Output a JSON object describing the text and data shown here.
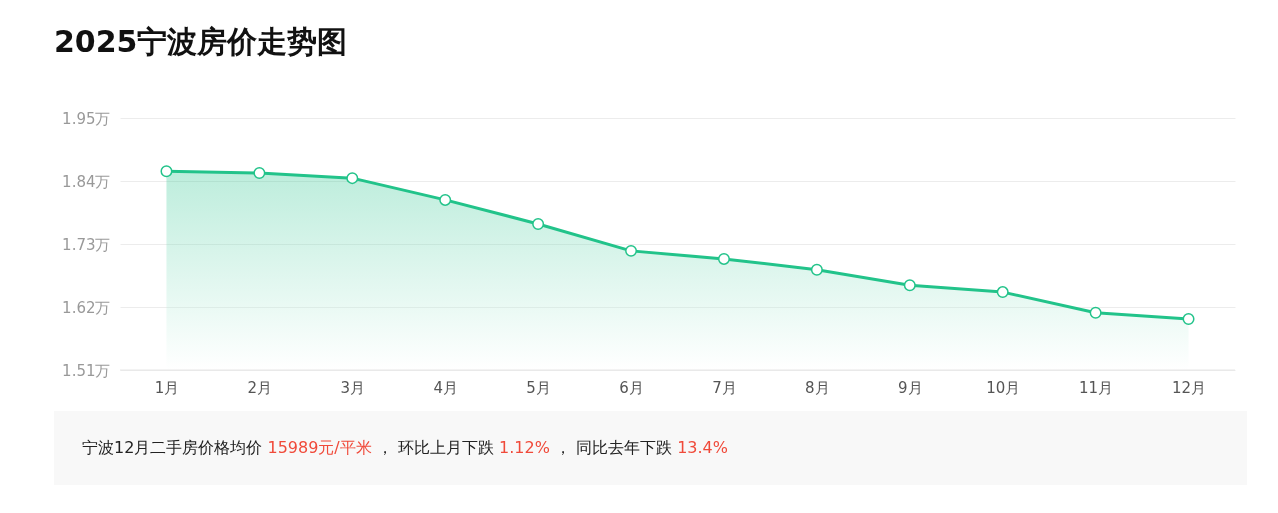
{
  "chart_data": {
    "type": "area",
    "title": "2025宁波房价走势图",
    "categories": [
      "1月",
      "2月",
      "3月",
      "4月",
      "5月",
      "6月",
      "7月",
      "8月",
      "9月",
      "10月",
      "11月",
      "12月"
    ],
    "series": [
      {
        "color": "#22c38a",
        "values": [
          1.857,
          1.854,
          1.845,
          1.807,
          1.765,
          1.718,
          1.704,
          1.685,
          1.658,
          1.646,
          1.61,
          1.599
        ]
      }
    ],
    "ylim": [
      1.51,
      1.95
    ],
    "yticks": [
      {
        "value": 1.51,
        "label": "1.51万"
      },
      {
        "value": 1.62,
        "label": "1.62万"
      },
      {
        "value": 1.73,
        "label": "1.73万"
      },
      {
        "value": 1.84,
        "label": "1.84万"
      },
      {
        "value": 1.95,
        "label": "1.95万"
      }
    ],
    "grid": "y",
    "marker": "circle",
    "annotations": [
      "宁波12月二手房价格均价 15989元/平米 ， 环比上月下跌 1.12% ， 同比去年下跌 13.4%"
    ]
  }
}
